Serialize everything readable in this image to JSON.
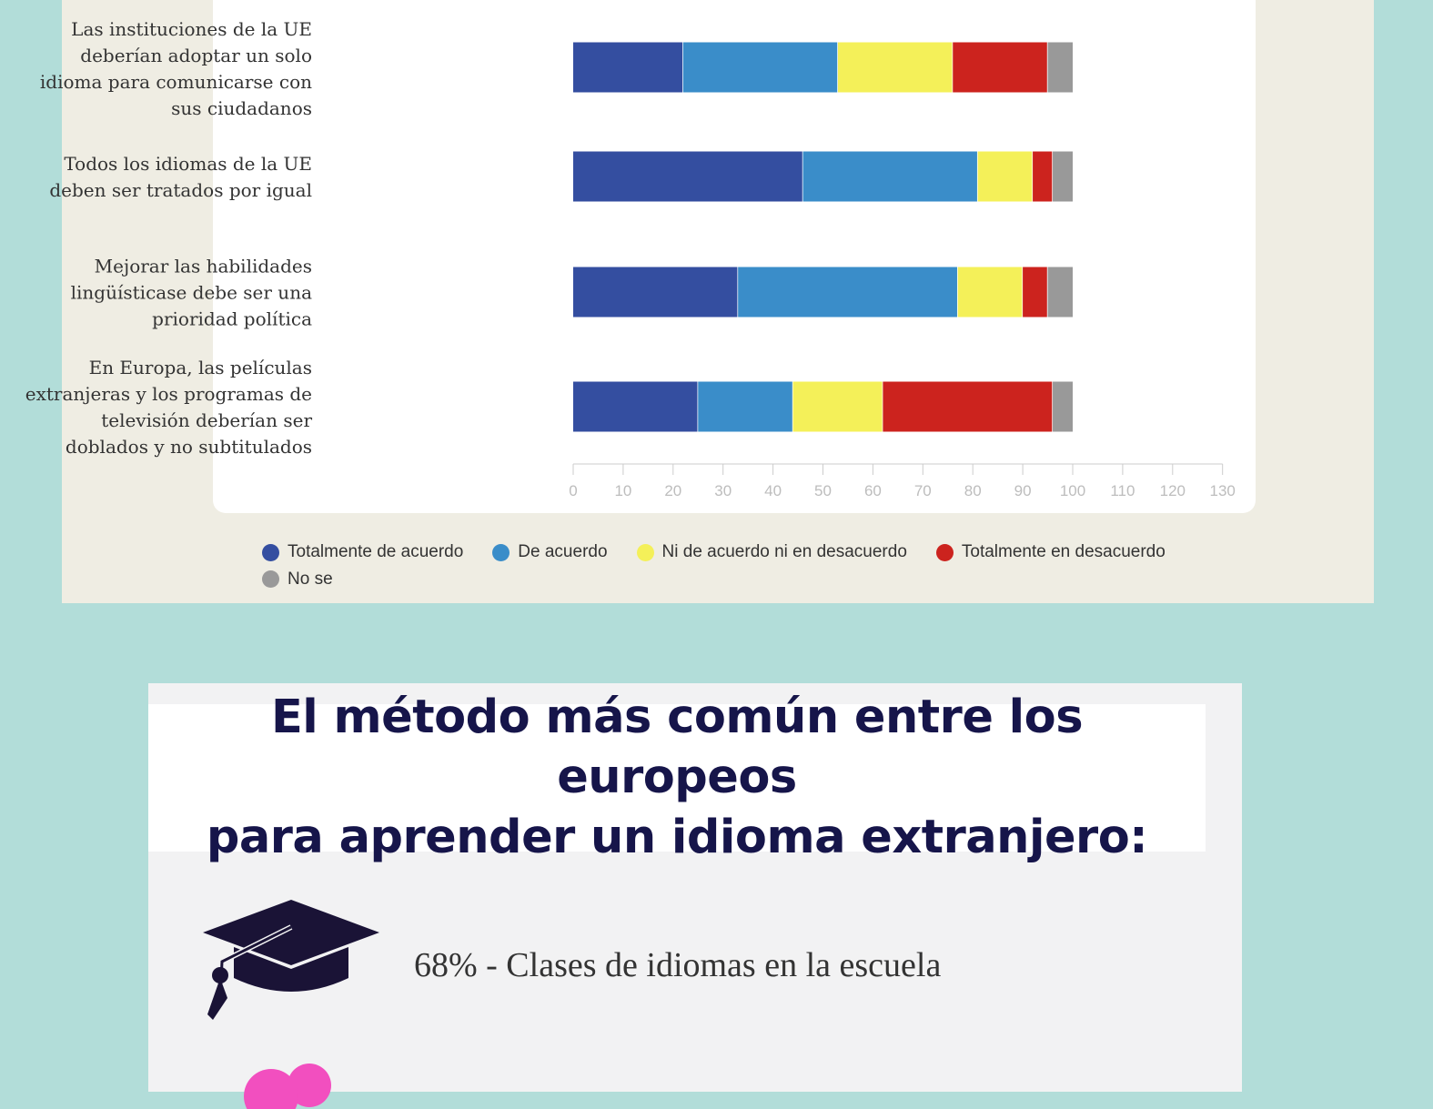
{
  "chart_data": {
    "type": "bar",
    "orientation": "horizontal",
    "stacked": true,
    "categories": [
      "Las instituciones de la UE deberían adoptar un solo idioma para comunicarse con sus ciudadanos",
      "Todos los idiomas de la UE deben ser tratados por igual",
      "Mejorar las habilidades lingüísticase debe ser una prioridad política",
      "En Europa, las películas extranjeras y los programas de televisión deberían ser doblados y no subtitulados"
    ],
    "category_lines": [
      [
        "Las instituciones de la UE",
        "deberían adoptar un solo",
        "idioma para comunicarse con",
        "sus ciudadanos"
      ],
      [
        "Todos los idiomas de la UE",
        "deben ser tratados por igual"
      ],
      [
        "Mejorar las habilidades",
        "lingüísticase debe ser una",
        "prioridad política"
      ],
      [
        "En Europa, las películas",
        "extranjeras y los programas de",
        "televisión deberían ser",
        "doblados y no subtitulados"
      ]
    ],
    "series": [
      {
        "name": "Totalmente de acuerdo",
        "color": "#344ea0",
        "values": [
          22,
          46,
          33,
          25
        ]
      },
      {
        "name": "De acuerdo",
        "color": "#3a8dc9",
        "values": [
          31,
          35,
          44,
          19
        ]
      },
      {
        "name": "Ni de acuerdo ni en desacuerdo",
        "color": "#f4f059",
        "values": [
          23,
          11,
          13,
          18
        ]
      },
      {
        "name": "Totalmente en desacuerdo",
        "color": "#cc231e",
        "values": [
          19,
          4,
          5,
          34
        ]
      },
      {
        "name": "No se",
        "color": "#999999",
        "values": [
          5,
          4,
          5,
          4
        ]
      }
    ],
    "xlim": [
      0,
      130
    ],
    "xticks": [
      "0",
      "10",
      "20",
      "30",
      "40",
      "50",
      "60",
      "70",
      "80",
      "90",
      "100",
      "110",
      "120",
      "130"
    ],
    "legend_position": "bottom"
  },
  "section": {
    "title_line1": "El método más común entre los europeos",
    "title_line2": "para aprender un idioma extranjero:",
    "methods": [
      {
        "text": "68% - Clases de idiomas en la escuela",
        "icon": "graduation-cap-icon",
        "icon_color": "#1a1336"
      }
    ],
    "next_icon": "pink-icon",
    "next_icon_color": "#f24fbf"
  }
}
